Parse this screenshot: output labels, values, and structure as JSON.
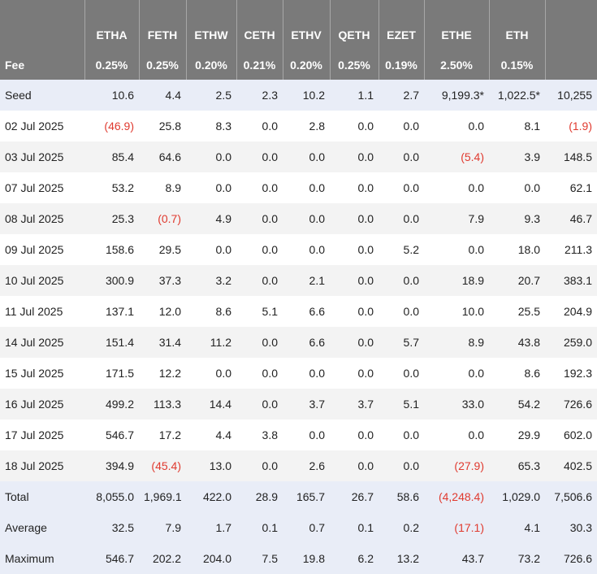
{
  "columns": [
    "ETHA",
    "FETH",
    "ETHW",
    "CETH",
    "ETHV",
    "QETH",
    "EZET",
    "ETHE",
    "ETH",
    ""
  ],
  "fee_row": {
    "label": "Fee",
    "values": [
      "0.25%",
      "0.25%",
      "0.20%",
      "0.21%",
      "0.20%",
      "0.25%",
      "0.19%",
      "2.50%",
      "0.15%",
      ""
    ]
  },
  "seed_row": {
    "label": "Seed",
    "values": [
      "10.6",
      "4.4",
      "2.5",
      "2.3",
      "10.2",
      "1.1",
      "2.7",
      "9,199.3*",
      "1,022.5*",
      "10,255"
    ]
  },
  "rows": [
    {
      "label": "02 Jul 2025",
      "values": [
        "(46.9)",
        "25.8",
        "8.3",
        "0.0",
        "2.8",
        "0.0",
        "0.0",
        "0.0",
        "8.1",
        "(1.9)"
      ]
    },
    {
      "label": "03 Jul 2025",
      "values": [
        "85.4",
        "64.6",
        "0.0",
        "0.0",
        "0.0",
        "0.0",
        "0.0",
        "(5.4)",
        "3.9",
        "148.5"
      ]
    },
    {
      "label": "07 Jul 2025",
      "values": [
        "53.2",
        "8.9",
        "0.0",
        "0.0",
        "0.0",
        "0.0",
        "0.0",
        "0.0",
        "0.0",
        "62.1"
      ]
    },
    {
      "label": "08 Jul 2025",
      "values": [
        "25.3",
        "(0.7)",
        "4.9",
        "0.0",
        "0.0",
        "0.0",
        "0.0",
        "7.9",
        "9.3",
        "46.7"
      ]
    },
    {
      "label": "09 Jul 2025",
      "values": [
        "158.6",
        "29.5",
        "0.0",
        "0.0",
        "0.0",
        "0.0",
        "5.2",
        "0.0",
        "18.0",
        "211.3"
      ]
    },
    {
      "label": "10 Jul 2025",
      "values": [
        "300.9",
        "37.3",
        "3.2",
        "0.0",
        "2.1",
        "0.0",
        "0.0",
        "18.9",
        "20.7",
        "383.1"
      ]
    },
    {
      "label": "11 Jul 2025",
      "values": [
        "137.1",
        "12.0",
        "8.6",
        "5.1",
        "6.6",
        "0.0",
        "0.0",
        "10.0",
        "25.5",
        "204.9"
      ]
    },
    {
      "label": "14 Jul 2025",
      "values": [
        "151.4",
        "31.4",
        "11.2",
        "0.0",
        "6.6",
        "0.0",
        "5.7",
        "8.9",
        "43.8",
        "259.0"
      ]
    },
    {
      "label": "15 Jul 2025",
      "values": [
        "171.5",
        "12.2",
        "0.0",
        "0.0",
        "0.0",
        "0.0",
        "0.0",
        "0.0",
        "8.6",
        "192.3"
      ]
    },
    {
      "label": "16 Jul 2025",
      "values": [
        "499.2",
        "113.3",
        "14.4",
        "0.0",
        "3.7",
        "3.7",
        "5.1",
        "33.0",
        "54.2",
        "726.6"
      ]
    },
    {
      "label": "17 Jul 2025",
      "values": [
        "546.7",
        "17.2",
        "4.4",
        "3.8",
        "0.0",
        "0.0",
        "0.0",
        "0.0",
        "29.9",
        "602.0"
      ]
    },
    {
      "label": "18 Jul 2025",
      "values": [
        "394.9",
        "(45.4)",
        "13.0",
        "0.0",
        "2.6",
        "0.0",
        "0.0",
        "(27.9)",
        "65.3",
        "402.5"
      ]
    }
  ],
  "summary_rows": [
    {
      "label": "Total",
      "values": [
        "8,055.0",
        "1,969.1",
        "422.0",
        "28.9",
        "165.7",
        "26.7",
        "58.6",
        "(4,248.4)",
        "1,029.0",
        "7,506.6"
      ]
    },
    {
      "label": "Average",
      "values": [
        "32.5",
        "7.9",
        "1.7",
        "0.1",
        "0.7",
        "0.1",
        "0.2",
        "(17.1)",
        "4.1",
        "30.3"
      ]
    },
    {
      "label": "Maximum",
      "values": [
        "546.7",
        "202.2",
        "204.0",
        "7.5",
        "19.8",
        "6.2",
        "13.2",
        "43.7",
        "73.2",
        "726.6"
      ]
    }
  ],
  "colors": {
    "header_bg": "#7a7a7a",
    "highlight_bg": "#e9edf7",
    "alt_row_bg": "#f3f3f3",
    "negative": "#e03a2f"
  }
}
